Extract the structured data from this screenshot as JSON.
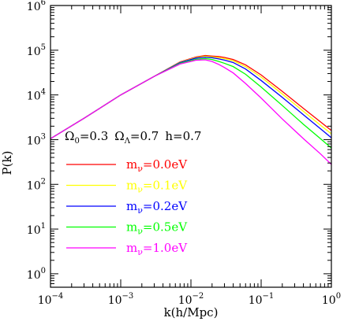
{
  "chart_data": {
    "type": "line",
    "xlabel": "k(h/Mpc)",
    "ylabel": "P(k)",
    "xscale": "log",
    "yscale": "log",
    "xlim": [
      0.0001,
      1
    ],
    "ylim": [
      0.5,
      1000000
    ],
    "grid": false,
    "x_ticks": [
      {
        "value": 0.0001,
        "base": "10",
        "exp": "−4"
      },
      {
        "value": 0.001,
        "base": "10",
        "exp": "−3"
      },
      {
        "value": 0.01,
        "base": "10",
        "exp": "−2"
      },
      {
        "value": 0.1,
        "base": "10",
        "exp": "−1"
      },
      {
        "value": 1,
        "base": "10",
        "exp": "0"
      }
    ],
    "y_ticks": [
      {
        "value": 1,
        "base": "10",
        "exp": "0"
      },
      {
        "value": 10,
        "base": "10",
        "exp": "1"
      },
      {
        "value": 100,
        "base": "10",
        "exp": "2"
      },
      {
        "value": 1000,
        "base": "10",
        "exp": "3"
      },
      {
        "value": 10000,
        "base": "10",
        "exp": "4"
      },
      {
        "value": 100000,
        "base": "10",
        "exp": "5"
      },
      {
        "value": 1000000,
        "base": "10",
        "exp": "6"
      }
    ],
    "annotation": {
      "omega0_symbol": "Ω",
      "omega0_sub": "0",
      "omega0_value": "=0.3",
      "omegaL_symbol": "Ω",
      "omegaL_sub": "Λ",
      "omegaL_value": "=0.7",
      "h_text": "h=0.7"
    },
    "legend_placement": "center-left",
    "series": [
      {
        "label_m": "m",
        "label_nu": "ν",
        "label_value": "=0.0eV",
        "color": "#ff0000",
        "x": [
          0.0001,
          0.0003,
          0.001,
          0.003,
          0.007,
          0.012,
          0.016,
          0.02,
          0.025,
          0.03,
          0.04,
          0.06,
          0.1,
          0.2,
          0.4,
          0.7,
          1.0
        ],
        "y": [
          1050,
          3000,
          10000,
          26000,
          55000,
          71000,
          76000,
          74000,
          72000,
          69000,
          62000,
          47000,
          28000,
          12000,
          5000,
          2500,
          1600
        ]
      },
      {
        "label_m": "m",
        "label_nu": "ν",
        "label_value": "=0.1eV",
        "color": "#ffff00",
        "x": [
          0.0001,
          0.0003,
          0.001,
          0.003,
          0.007,
          0.012,
          0.016,
          0.02,
          0.025,
          0.03,
          0.04,
          0.06,
          0.1,
          0.2,
          0.4,
          0.7,
          1.0
        ],
        "y": [
          1050,
          3000,
          10000,
          26000,
          54000,
          69000,
          73000,
          71000,
          68000,
          65000,
          58000,
          43000,
          25000,
          10500,
          4300,
          2100,
          1350
        ]
      },
      {
        "label_m": "m",
        "label_nu": "ν",
        "label_value": "=0.2eV",
        "color": "#0000ff",
        "x": [
          0.0001,
          0.0003,
          0.001,
          0.003,
          0.007,
          0.012,
          0.016,
          0.02,
          0.025,
          0.03,
          0.04,
          0.06,
          0.1,
          0.2,
          0.4,
          0.7,
          1.0
        ],
        "y": [
          1050,
          3000,
          10000,
          26000,
          53000,
          67000,
          70000,
          68000,
          64000,
          60000,
          53000,
          38000,
          21000,
          8800,
          3600,
          1750,
          1100
        ]
      },
      {
        "label_m": "m",
        "label_nu": "ν",
        "label_value": "=0.5eV",
        "color": "#00ff00",
        "x": [
          0.0001,
          0.0003,
          0.001,
          0.003,
          0.007,
          0.012,
          0.016,
          0.02,
          0.025,
          0.03,
          0.04,
          0.06,
          0.1,
          0.2,
          0.4,
          0.7,
          1.0
        ],
        "y": [
          1050,
          3000,
          10000,
          26000,
          51000,
          63000,
          65000,
          62000,
          56000,
          51000,
          43000,
          29000,
          15000,
          5800,
          2200,
          1050,
          650
        ]
      },
      {
        "label_m": "m",
        "label_nu": "ν",
        "label_value": "=1.0eV",
        "color": "#ff00ff",
        "x": [
          0.0001,
          0.0003,
          0.001,
          0.003,
          0.007,
          0.012,
          0.016,
          0.02,
          0.025,
          0.03,
          0.04,
          0.06,
          0.1,
          0.2,
          0.4,
          0.7,
          1.0
        ],
        "y": [
          1050,
          3000,
          10000,
          26000,
          49000,
          60000,
          61000,
          56000,
          48000,
          41000,
          31000,
          18000,
          8500,
          2900,
          1050,
          480,
          280
        ]
      }
    ]
  }
}
